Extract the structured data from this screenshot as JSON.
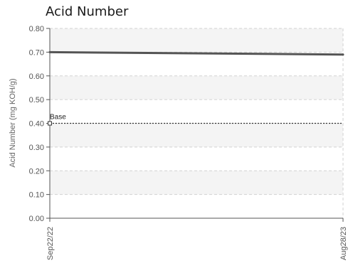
{
  "chart_data": {
    "type": "line",
    "title": "Acid Number",
    "ylabel": "Acid Number (mg KOH/g)",
    "xlabel": "",
    "ylim": [
      0,
      0.8
    ],
    "yticks": [
      "0.00",
      "0.10",
      "0.20",
      "0.30",
      "0.40",
      "0.50",
      "0.60",
      "0.70",
      "0.80"
    ],
    "x": [
      "Sep22/22",
      "Aug28/23"
    ],
    "series": [
      {
        "values": [
          0.7,
          0.69
        ],
        "color": "#555555"
      }
    ],
    "reference": {
      "label": "Base",
      "value": 0.4
    },
    "grid": true,
    "band_color": "#f4f4f4"
  }
}
